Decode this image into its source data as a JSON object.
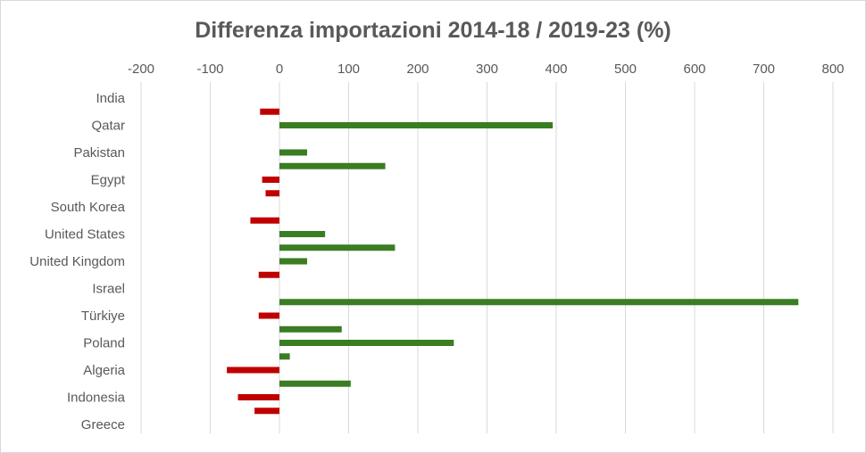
{
  "chart_data": {
    "type": "bar",
    "orientation": "horizontal",
    "title": "Differenza importazioni 2014-18 / 2019-23 (%)",
    "xlim": [
      -200,
      800
    ],
    "x_ticks": [
      "-200",
      "-100",
      "0",
      "100",
      "200",
      "300",
      "400",
      "500",
      "600",
      "700",
      "800"
    ],
    "x_tick_values": [
      -200,
      -100,
      0,
      100,
      200,
      300,
      400,
      500,
      600,
      700,
      800
    ],
    "category_labels": [
      "India",
      "Qatar",
      "Pakistan",
      "Egypt",
      "South Korea",
      "United States",
      "United Kingdom",
      "Israel",
      "Türkiye",
      "Poland",
      "Algeria",
      "Indonesia",
      "Greece"
    ],
    "grid": true,
    "legend": "none",
    "positive_color": "#3a7d22",
    "negative_color": "#c00000",
    "bars": [
      {
        "slot": 0.5,
        "value": -28
      },
      {
        "slot": 1,
        "value": 395
      },
      {
        "slot": 2,
        "value": 40
      },
      {
        "slot": 2.5,
        "value": 153
      },
      {
        "slot": 3,
        "value": -25
      },
      {
        "slot": 3.5,
        "value": -20
      },
      {
        "slot": 4.5,
        "value": -42
      },
      {
        "slot": 5,
        "value": 66
      },
      {
        "slot": 5.5,
        "value": 167
      },
      {
        "slot": 6,
        "value": 40
      },
      {
        "slot": 6.5,
        "value": -30
      },
      {
        "slot": 7.5,
        "value": 750
      },
      {
        "slot": 8,
        "value": -30
      },
      {
        "slot": 8.5,
        "value": 90
      },
      {
        "slot": 9,
        "value": 252
      },
      {
        "slot": 9.5,
        "value": 15
      },
      {
        "slot": 10,
        "value": -76
      },
      {
        "slot": 10.5,
        "value": 103
      },
      {
        "slot": 11,
        "value": -60
      },
      {
        "slot": 11.5,
        "value": -36
      }
    ]
  }
}
